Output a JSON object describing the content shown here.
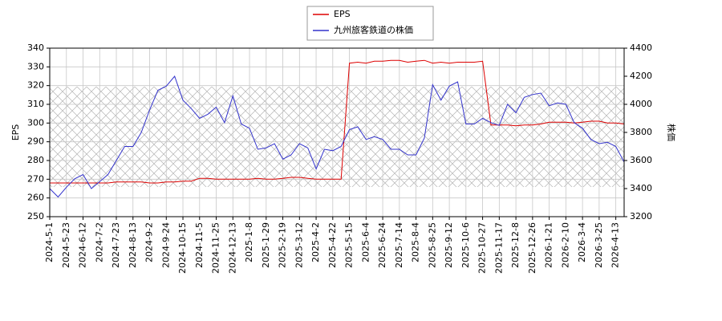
{
  "chart_data": {
    "type": "line",
    "ylabel": "EPS",
    "y2label": "株価",
    "categories": [
      "2024-5-1",
      null,
      "2024-5-23",
      null,
      "2024-6-12",
      null,
      "2024-7-2",
      null,
      "2024-7-23",
      null,
      "2024-8-13",
      null,
      "2024-9-2",
      null,
      "2024-9-24",
      null,
      "2024-10-15",
      null,
      "2024-11-5",
      null,
      "2024-11-25",
      null,
      "2024-12-13",
      null,
      "2025-1-8",
      null,
      "2025-1-29",
      null,
      "2025-2-19",
      null,
      "2025-3-12",
      null,
      "2025-4-2",
      null,
      "2025-4-22",
      null,
      "2025-5-15",
      null,
      "2025-6-4",
      null,
      "2025-6-24",
      null,
      "2025-7-14",
      null,
      "2025-8-4",
      null,
      "2025-8-25",
      null,
      "2025-9-12",
      null,
      "2025-10-6",
      null,
      "2025-10-27",
      null,
      "2025-11-17",
      null,
      "2025-12-8",
      null,
      "2025-12-26",
      null,
      "2026-1-21",
      null,
      "2026-2-10",
      null,
      "2026-3-4",
      null,
      "2026-3-25",
      null,
      "2026-4-13",
      null
    ],
    "series": [
      {
        "name": "EPS",
        "color": "#dd0000",
        "axis": "y",
        "values": [
          268,
          268,
          268,
          268,
          268,
          268,
          268,
          268,
          268.5,
          268.5,
          268.5,
          268.5,
          268,
          268,
          268.5,
          268.5,
          269,
          269,
          270.5,
          270.5,
          270,
          270,
          270,
          270,
          270,
          270.5,
          270,
          270,
          270.5,
          271,
          271,
          270.5,
          270,
          270,
          270,
          270,
          332,
          332.5,
          332,
          333,
          333,
          333.5,
          333.5,
          332.5,
          333,
          333.5,
          332,
          332.5,
          332,
          332.5,
          332.5,
          332.5,
          333,
          299,
          299,
          299,
          298.5,
          299,
          299,
          299.5,
          300.5,
          300.5,
          300.5,
          300,
          300.5,
          301,
          301,
          300,
          300,
          299.5
        ]
      },
      {
        "name": "九州旅客鉄道の株価",
        "color": "#3333cc",
        "axis": "y2",
        "values": [
          3400,
          3340,
          3410,
          3470,
          3500,
          3400,
          3450,
          3500,
          3600,
          3700,
          3700,
          3800,
          3960,
          4100,
          4130,
          4200,
          4030,
          3970,
          3900,
          3930,
          3980,
          3870,
          4060,
          3860,
          3830,
          3680,
          3690,
          3720,
          3610,
          3640,
          3720,
          3690,
          3540,
          3680,
          3670,
          3700,
          3820,
          3840,
          3750,
          3770,
          3750,
          3680,
          3680,
          3640,
          3640,
          3760,
          4140,
          4030,
          4130,
          4160,
          3860,
          3860,
          3900,
          3870,
          3850,
          4000,
          3940,
          4050,
          4070,
          4080,
          3990,
          4010,
          4000,
          3870,
          3830,
          3750,
          3720,
          3730,
          3700,
          3590
        ]
      }
    ],
    "ylim": [
      250,
      340
    ],
    "yticks": [
      250,
      260,
      270,
      280,
      290,
      300,
      310,
      320,
      330,
      340
    ],
    "y2lim": [
      3200,
      4400
    ],
    "y2ticks": [
      3200,
      3400,
      3600,
      3800,
      4000,
      4200,
      4400
    ],
    "grid": true,
    "legend": "upper center"
  }
}
